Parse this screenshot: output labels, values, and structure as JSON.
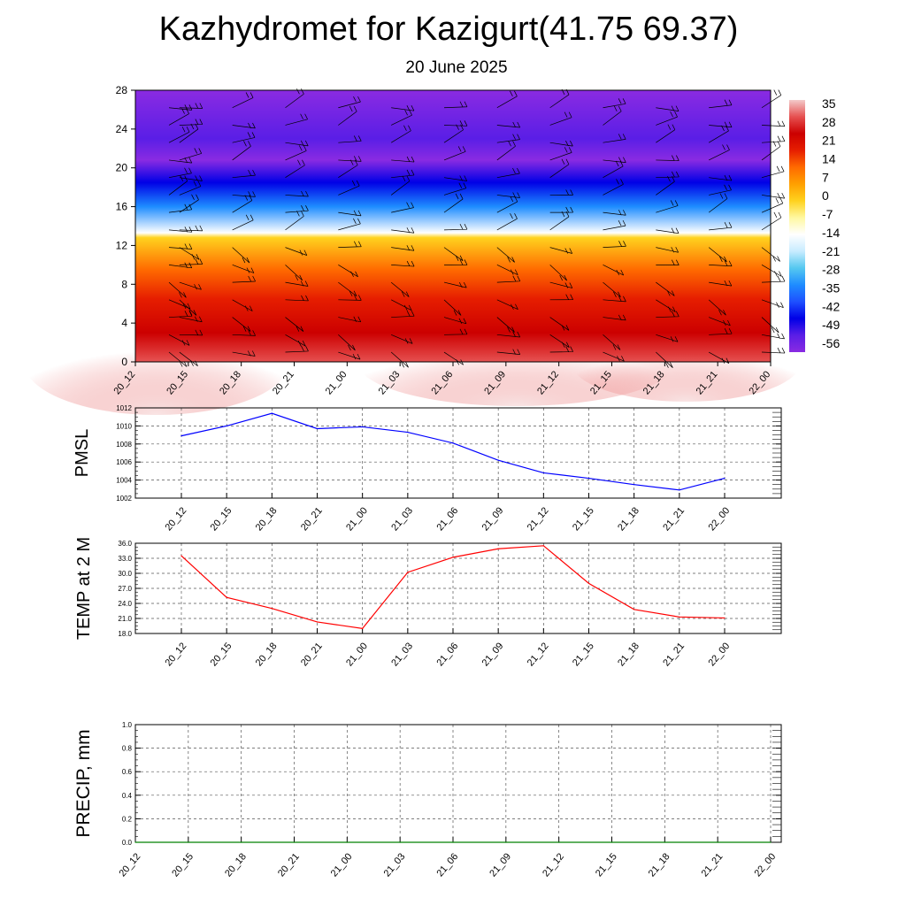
{
  "title": "Kazhydromet for Kazigurt(41.75 69.37)",
  "subtitle": "20 June 2025",
  "chart_data": [
    {
      "type": "heatmap",
      "name": "vertical temperature cross-section with wind barbs",
      "x_categories": [
        "20_12",
        "20_15",
        "20_18",
        "20_21",
        "21_00",
        "21_03",
        "21_06",
        "21_09",
        "21_12",
        "21_15",
        "21_18",
        "21_21",
        "22_00"
      ],
      "y_ticks": [
        "0",
        "4",
        "8",
        "12",
        "16",
        "20",
        "24",
        "28"
      ],
      "ylim": [
        0,
        28
      ],
      "colorbar_labels": [
        "35",
        "28",
        "21",
        "14",
        "7",
        "0",
        "-7",
        "-14",
        "-21",
        "-28",
        "-35",
        "-42",
        "-49",
        "-56"
      ],
      "colorbar_range": [
        -60,
        38
      ],
      "profile_stops": [
        {
          "y": 0,
          "value": 33
        },
        {
          "y": 3,
          "value": 27
        },
        {
          "y": 6.5,
          "value": 18
        },
        {
          "y": 9.5,
          "value": 9
        },
        {
          "y": 12.8,
          "value": 0
        },
        {
          "y": 13.3,
          "value": -14
        },
        {
          "y": 16,
          "value": -32
        },
        {
          "y": 18.5,
          "value": -45
        },
        {
          "y": 20.8,
          "value": -58
        },
        {
          "y": 23,
          "value": -54
        },
        {
          "y": 28,
          "value": -60
        }
      ],
      "colors": {
        "stops": [
          "#f3c9c9",
          "#e65050",
          "#cc0000",
          "#e61e00",
          "#ff6a00",
          "#ffa000",
          "#ffd21e",
          "#fff8a0",
          "#ffffff",
          "#c8ecff",
          "#55c8f0",
          "#1e8cff",
          "#1e50ff",
          "#0000e6",
          "#5a1ee6",
          "#8a2be2"
        ]
      }
    },
    {
      "type": "line",
      "ylabel": "PMSL",
      "x": [
        "20_12",
        "20_15",
        "20_18",
        "20_21",
        "21_00",
        "21_03",
        "21_06",
        "21_09",
        "21_12",
        "21_15",
        "21_18",
        "21_21",
        "22_00"
      ],
      "y_ticks": [
        "1002",
        "1004",
        "1006",
        "1008",
        "1010",
        "1012"
      ],
      "ylim": [
        1002,
        1012
      ],
      "series": [
        {
          "values": [
            1008.9,
            1010.0,
            1011.4,
            1009.7,
            1009.9,
            1009.3,
            1008.1,
            1006.2,
            1004.8,
            1004.2,
            1003.5,
            1002.9,
            1004.2
          ],
          "color": "#0000ff"
        }
      ]
    },
    {
      "type": "line",
      "ylabel": "TEMP at 2 M",
      "x": [
        "20_12",
        "20_15",
        "20_18",
        "20_21",
        "21_00",
        "21_03",
        "21_06",
        "21_09",
        "21_12",
        "21_15",
        "21_18",
        "21_21",
        "22_00"
      ],
      "y_ticks": [
        "18.0",
        "21.0",
        "24.0",
        "27.0",
        "30.0",
        "33.0",
        "36.0"
      ],
      "ylim": [
        18,
        36
      ],
      "series": [
        {
          "values": [
            33.5,
            25.2,
            23.0,
            20.3,
            19.0,
            30.2,
            33.2,
            34.9,
            35.5,
            28.0,
            22.8,
            21.3,
            21.1
          ],
          "color": "#ff0000"
        }
      ]
    },
    {
      "type": "line",
      "ylabel": "PRECIP, mm",
      "x": [
        "20_12",
        "20_15",
        "20_18",
        "20_21",
        "21_00",
        "21_03",
        "21_06",
        "21_09",
        "21_12",
        "21_15",
        "21_18",
        "21_21",
        "22_00"
      ],
      "y_ticks": [
        "0.0",
        "0.2",
        "0.4",
        "0.6",
        "0.8",
        "1.0"
      ],
      "ylim": [
        0,
        1
      ],
      "series": [
        {
          "values": [
            0,
            0,
            0,
            0,
            0,
            0,
            0,
            0,
            0,
            0,
            0,
            0,
            0
          ],
          "color": "#008000"
        }
      ]
    }
  ]
}
